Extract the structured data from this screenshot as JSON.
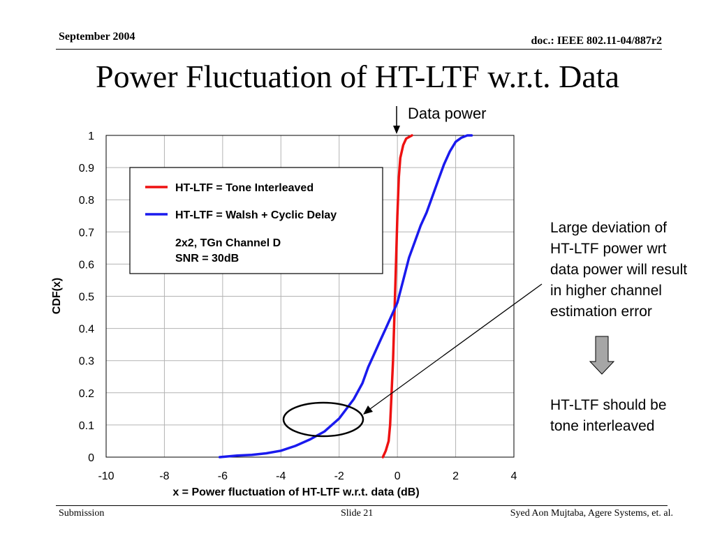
{
  "header": {
    "date": "September 2004",
    "doc": "doc.: IEEE 802.11-04/887r2"
  },
  "slide": {
    "title": "Power Fluctuation of HT-LTF w.r.t. Data"
  },
  "footer": {
    "left": "Submission",
    "center": "Slide 21",
    "right": "Syed Aon Mujtaba, Agere Systems, et. al."
  },
  "annotations": {
    "data_power_label": "Data power",
    "note_lines": [
      "Large deviation of",
      "HT-LTF power wrt",
      "data power will result",
      "in higher channel",
      "estimation error"
    ],
    "conclusion_lines": [
      "HT-LTF should be",
      "tone interleaved"
    ]
  },
  "colors": {
    "tone_interleaved": "#ee1111",
    "walsh_cyclic": "#1a1aee",
    "arrow_fill": "#a6a6a6",
    "grid": "#b3b3b3"
  },
  "chart_data": {
    "type": "line",
    "title": "",
    "xlabel": "x = Power fluctuation of HT-LTF w.r.t. data (dB)",
    "ylabel": "CDF(x)",
    "xlim": [
      -10,
      4
    ],
    "ylim": [
      0,
      1
    ],
    "xticks": [
      -10,
      -8,
      -6,
      -4,
      -2,
      0,
      2,
      4
    ],
    "yticks": [
      0,
      0.1,
      0.2,
      0.3,
      0.4,
      0.5,
      0.6,
      0.7,
      0.8,
      0.9,
      1
    ],
    "grid": true,
    "legend_position": "upper-left",
    "legend_note": [
      "2x2, TGn Channel D",
      "SNR = 30dB"
    ],
    "series": [
      {
        "name": "HT-LTF = Tone Interleaved",
        "color": "#ee1111",
        "x": [
          -0.5,
          -0.4,
          -0.3,
          -0.25,
          -0.2,
          -0.15,
          -0.1,
          -0.05,
          0.0,
          0.05,
          0.1,
          0.2,
          0.3,
          0.5
        ],
        "y": [
          0.0,
          0.02,
          0.05,
          0.1,
          0.2,
          0.3,
          0.45,
          0.6,
          0.75,
          0.87,
          0.93,
          0.97,
          0.99,
          1.0
        ]
      },
      {
        "name": "HT-LTF = Walsh + Cyclic Delay",
        "color": "#1a1aee",
        "x": [
          -6.1,
          -5.5,
          -5.0,
          -4.5,
          -4.0,
          -3.5,
          -3.0,
          -2.5,
          -2.0,
          -1.5,
          -1.2,
          -1.0,
          -0.8,
          -0.6,
          -0.4,
          -0.2,
          0.0,
          0.2,
          0.4,
          0.6,
          0.8,
          1.0,
          1.2,
          1.4,
          1.6,
          1.8,
          2.0,
          2.2,
          2.4,
          2.55
        ],
        "y": [
          0.0,
          0.005,
          0.007,
          0.012,
          0.02,
          0.035,
          0.055,
          0.08,
          0.12,
          0.18,
          0.23,
          0.28,
          0.32,
          0.36,
          0.4,
          0.44,
          0.48,
          0.55,
          0.62,
          0.67,
          0.72,
          0.76,
          0.81,
          0.86,
          0.91,
          0.95,
          0.98,
          0.993,
          1.0,
          1.0
        ]
      }
    ]
  }
}
